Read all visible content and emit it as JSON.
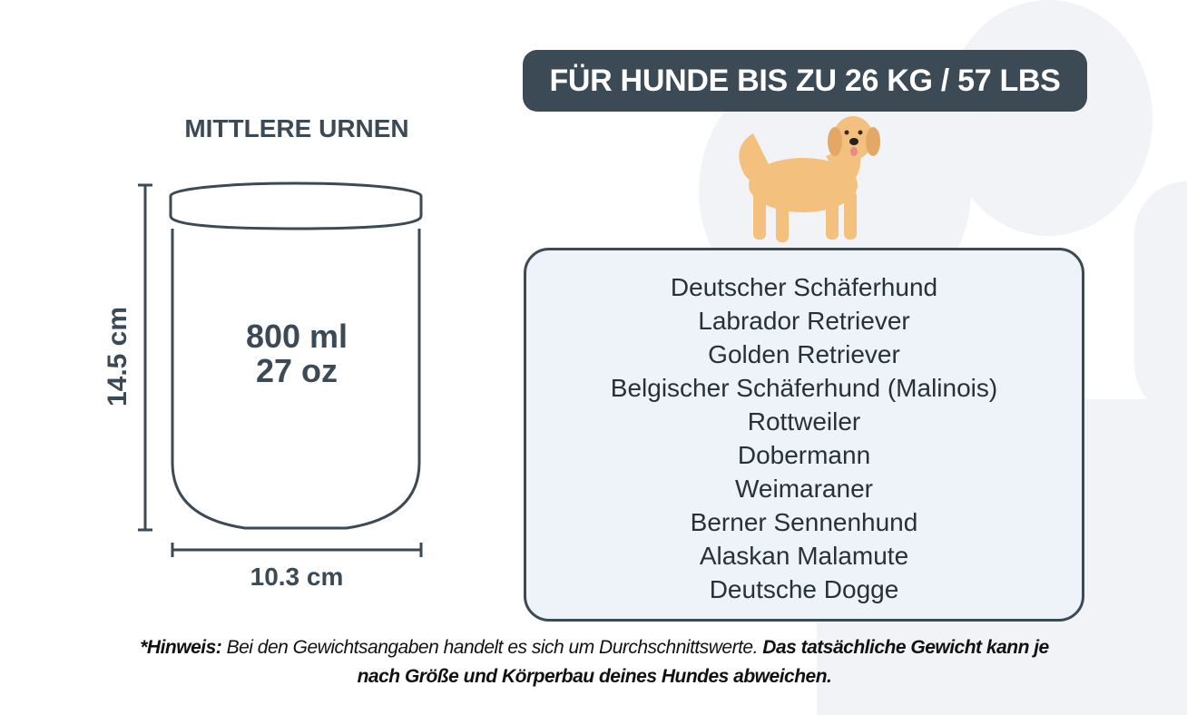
{
  "header": {
    "title": "FÜR HUNDE BIS ZU 26 KG / 57 LBS"
  },
  "urn": {
    "label": "MITTLERE URNEN",
    "volume_ml": "800 ml",
    "volume_oz": "27 oz",
    "height": "14.5 cm",
    "width": "10.3 cm"
  },
  "breeds": [
    "Deutscher Schäferhund",
    "Labrador Retriever",
    "Golden Retriever",
    "Belgischer Schäferhund (Malinois)",
    "Rottweiler",
    "Dobermann",
    "Weimaraner",
    "Berner Sennenhund",
    "Alaskan Malamute",
    "Deutsche Dogge"
  ],
  "note": {
    "prefix": "*Hinweis:",
    "text": " Bei den Gewichtsangaben handelt es sich um Durchschnittswerte. ",
    "emphasis": "Das tatsächliche Gewicht kann je nach Größe und Körperbau deines Hundes abweichen."
  },
  "colors": {
    "dark": "#3b4a55",
    "box_fill": "#eef2f9",
    "dog": "#f4c07e",
    "paw_bg": "#f1f3f6"
  },
  "icons": {
    "dog": "golden-retriever-illustration",
    "background": "paw-print"
  }
}
